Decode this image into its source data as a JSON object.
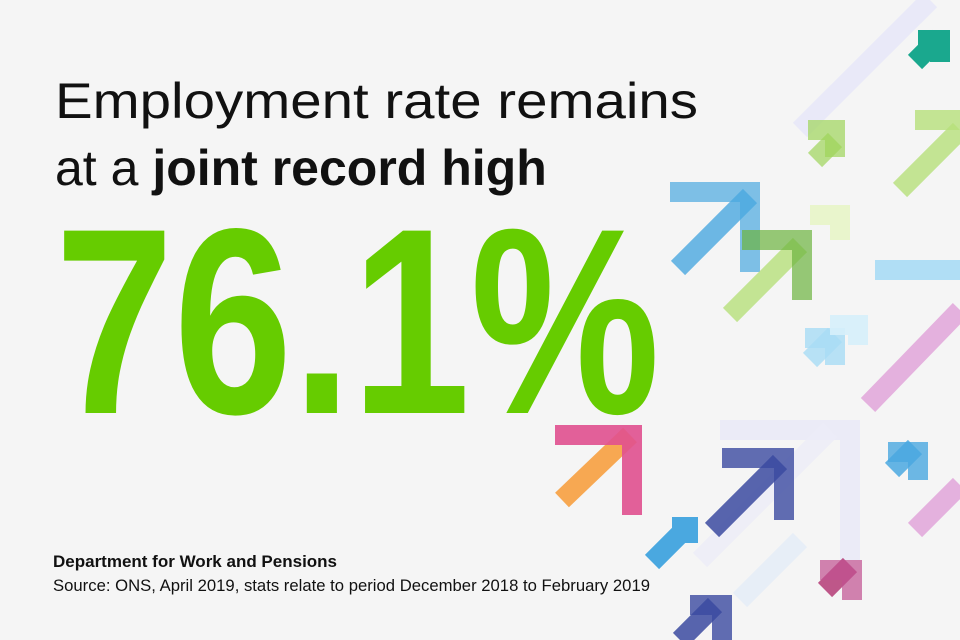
{
  "headline": {
    "line1": "Employment rate remains",
    "line2_plain": "at a",
    "line2_bold": "joint record high"
  },
  "statistic": "76.1%",
  "footer": {
    "organisation": "Department for Work and Pensions",
    "source": "Source: ONS, April 2019, stats relate to period December 2018 to February 2019"
  }
}
